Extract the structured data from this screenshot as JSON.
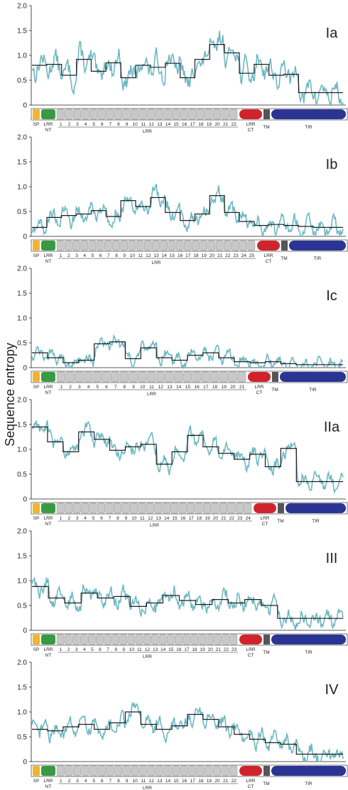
{
  "ylabel": "Sequence entropy",
  "yticks": [
    "0",
    "0.5",
    "1.0",
    "1.5",
    "2.0"
  ],
  "colors": {
    "entropy_line": "#6db8c3",
    "window_mean": "#231f20",
    "SP": "#f1b52c",
    "NT": "#3a9a43",
    "LRR": "#c8c8c8",
    "CT": "#d0242c",
    "TM": "#555555",
    "TIR": "#2a3593"
  },
  "domain_labels": {
    "SP": "SP",
    "NT_top": "LRR",
    "NT_bottom": "NT",
    "CT_top": "LRR",
    "CT_bottom": "CT",
    "TM": "TM",
    "TIR": "TIR",
    "LRR": "LRR"
  },
  "chart_data": [
    {
      "type": "line",
      "title": "Ia",
      "ylim": [
        0,
        2.0
      ],
      "lrr_count": 22,
      "mean_steps": [
        0.8,
        0.82,
        0.6,
        0.92,
        0.68,
        0.85,
        0.55,
        0.8,
        0.76,
        0.84,
        0.55,
        0.92,
        1.22,
        1.05,
        0.64,
        0.82,
        0.6,
        0.62,
        0.25,
        0.25,
        0.25
      ],
      "entropy_band": 0.3
    },
    {
      "type": "line",
      "title": "Ib",
      "ylim": [
        0,
        2.0
      ],
      "lrr_count": 25,
      "mean_steps": [
        0.18,
        0.38,
        0.42,
        0.45,
        0.52,
        0.4,
        0.72,
        0.6,
        0.78,
        0.48,
        0.32,
        0.45,
        0.82,
        0.48,
        0.3,
        0.22,
        0.24,
        0.22,
        0.2,
        0.18,
        0.18
      ],
      "entropy_band": 0.22
    },
    {
      "type": "line",
      "title": "Ic",
      "ylim": [
        0,
        2.0
      ],
      "lrr_count": 21,
      "mean_steps": [
        0.3,
        0.2,
        0.1,
        0.15,
        0.48,
        0.52,
        0.18,
        0.4,
        0.2,
        0.15,
        0.25,
        0.3,
        0.2,
        0.12,
        0.1,
        0.12,
        0.08,
        0.06,
        0.06,
        0.06
      ],
      "entropy_band": 0.16
    },
    {
      "type": "line",
      "title": "IIa",
      "ylim": [
        0,
        2.0
      ],
      "lrr_count": 24,
      "mean_steps": [
        1.45,
        1.15,
        0.95,
        1.35,
        1.2,
        0.98,
        1.05,
        1.1,
        0.7,
        0.95,
        1.28,
        1.05,
        0.92,
        0.8,
        0.9,
        0.65,
        1.02,
        0.35,
        0.35,
        0.35
      ],
      "entropy_band": 0.2
    },
    {
      "type": "line",
      "title": "III",
      "ylim": [
        0,
        2.0
      ],
      "lrr_count": 23,
      "mean_steps": [
        0.88,
        0.65,
        0.55,
        0.75,
        0.65,
        0.68,
        0.48,
        0.55,
        0.7,
        0.6,
        0.52,
        0.62,
        0.55,
        0.62,
        0.5,
        0.24,
        0.24,
        0.24,
        0.24
      ],
      "entropy_band": 0.22
    },
    {
      "type": "line",
      "title": "IV",
      "ylim": [
        0,
        2.0
      ],
      "lrr_count": 22,
      "mean_steps": [
        0.65,
        0.62,
        0.7,
        0.75,
        0.65,
        0.78,
        1.0,
        0.75,
        0.65,
        0.72,
        0.95,
        0.85,
        0.7,
        0.55,
        0.45,
        0.38,
        0.35,
        0.15,
        0.15,
        0.15
      ],
      "entropy_band": 0.22
    }
  ]
}
